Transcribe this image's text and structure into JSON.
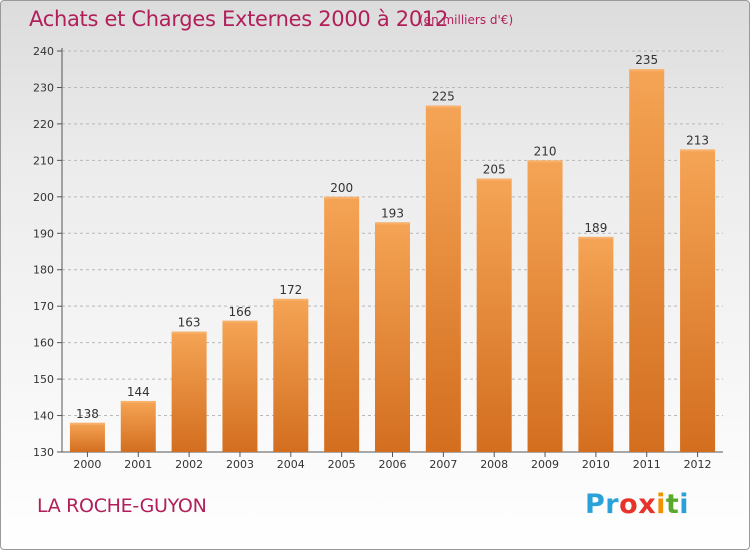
{
  "header": {
    "title": "Achats et Charges Externes 2000 à 2012",
    "subtitle": "(en milliers d'€)"
  },
  "footer": {
    "town": "LA ROCHE-GUYON",
    "logo_letters": [
      "P",
      "r",
      "o",
      "x",
      "i",
      "t",
      "i"
    ],
    "logo_colors": [
      "#2aa1d8",
      "#2aa1d8",
      "#e7342a",
      "#e7342a",
      "#f39200",
      "#58a92e",
      "#2aa1d8"
    ]
  },
  "colors": {
    "title": "#b11f5a",
    "bar_light": "#f5a455",
    "bar_dark": "#d36e1f",
    "grid": "#b8b8b8"
  },
  "chart_data": {
    "type": "bar",
    "title": "Achats et Charges Externes 2000 à 2012",
    "subtitle": "(en milliers d'€)",
    "xlabel": "",
    "ylabel": "",
    "categories": [
      "2000",
      "2001",
      "2002",
      "2003",
      "2004",
      "2005",
      "2006",
      "2007",
      "2008",
      "2009",
      "2010",
      "2011",
      "2012"
    ],
    "values": [
      138,
      144,
      163,
      166,
      172,
      200,
      193,
      225,
      205,
      210,
      189,
      235,
      213
    ],
    "ylim": [
      130,
      240
    ],
    "yticks": [
      130,
      140,
      150,
      160,
      170,
      180,
      190,
      200,
      210,
      220,
      230,
      240
    ],
    "grid": true,
    "data_labels": true
  }
}
